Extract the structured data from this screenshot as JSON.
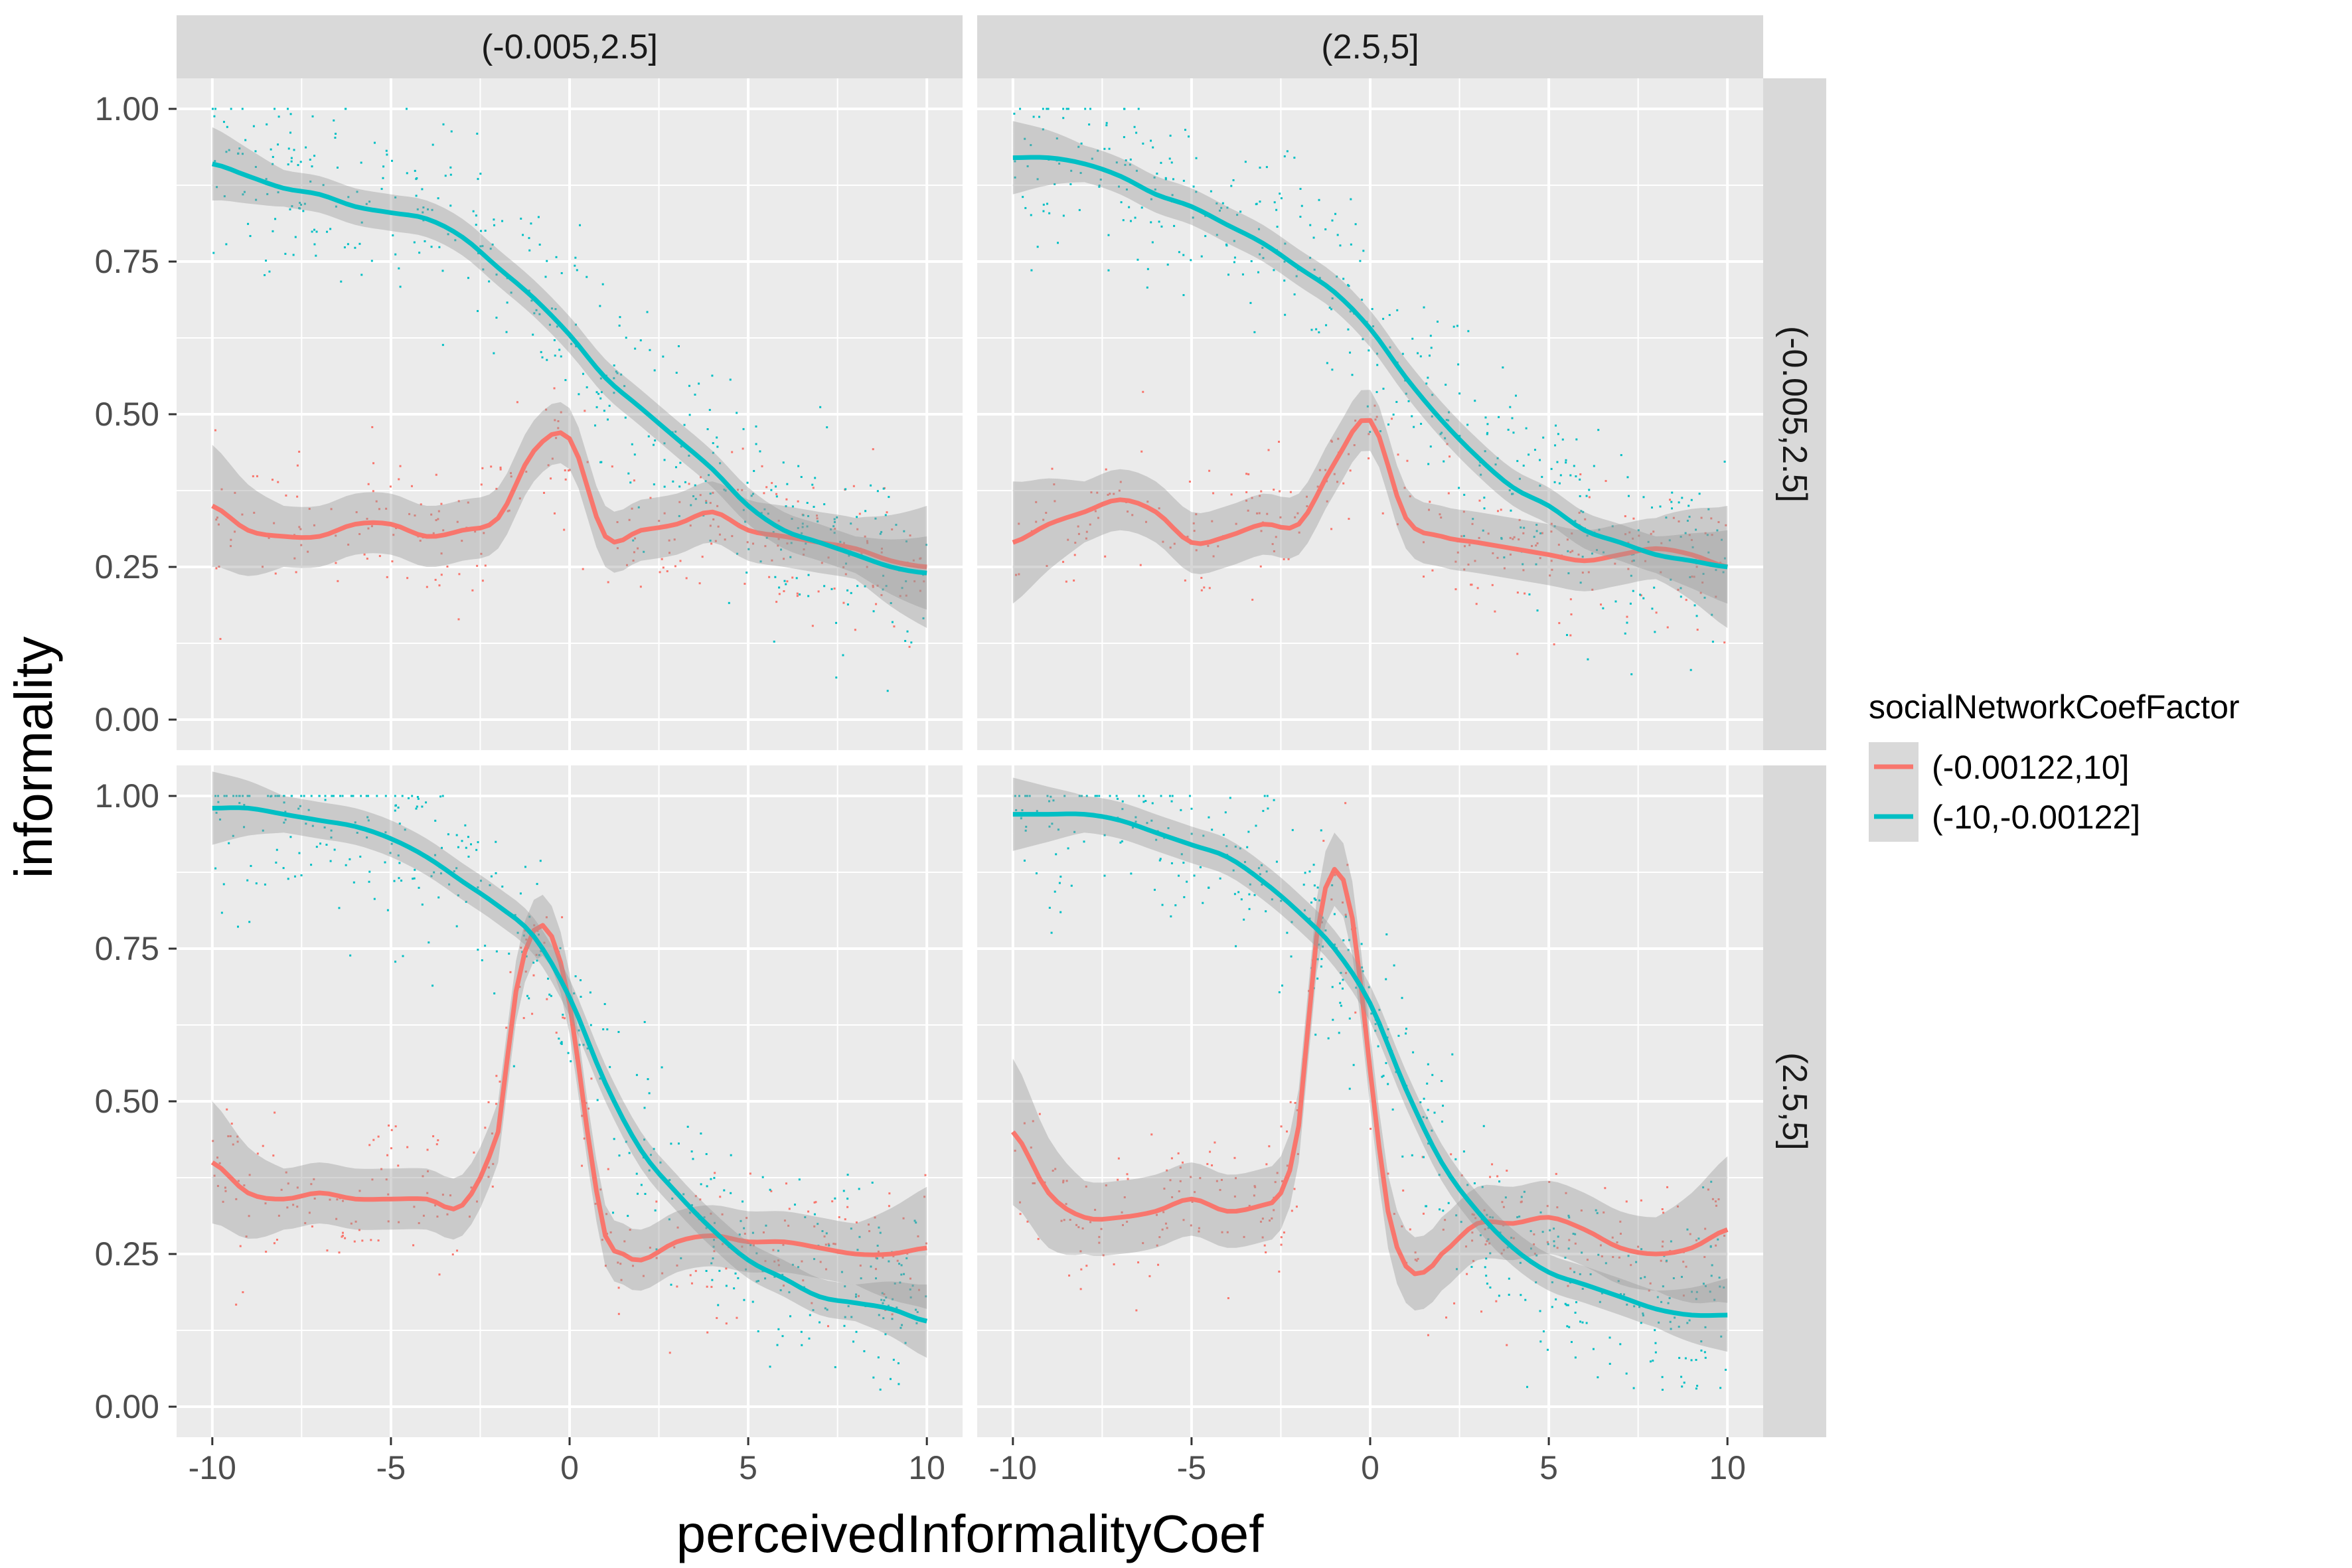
{
  "chart_data": {
    "type": "scatter",
    "xlabel": "perceivedInformalityCoef",
    "ylabel": "informality",
    "xlim": [
      -11,
      11
    ],
    "ylim": [
      -0.05,
      1.05
    ],
    "x_ticks": [
      -10,
      -5,
      0,
      5,
      10
    ],
    "x_tick_labels": [
      "-10",
      "-5",
      "0",
      "5",
      "10"
    ],
    "y_ticks": [
      0,
      0.25,
      0.5,
      0.75,
      1
    ],
    "y_tick_labels": [
      "0.00",
      "0.25",
      "0.50",
      "0.75",
      "1.00"
    ],
    "grid": true,
    "col_facets": [
      "(-0.005,2.5]",
      "(2.5,5]"
    ],
    "row_facets": [
      "(-0.005,2.5]",
      "(2.5,5]"
    ],
    "legend": {
      "title": "socialNetworkCoefFactor",
      "position": "right",
      "entries": [
        "(-0.00122,10]",
        "(-10,-0.00122]"
      ]
    },
    "colors": {
      "series_a": "#F8766D",
      "series_b": "#00BFC4",
      "panel_bg": "#EBEBEB",
      "strip_bg": "#D9D9D9",
      "ribbon": "#999999"
    },
    "panels": [
      {
        "row": 0,
        "col": 0,
        "series": [
          {
            "name": "(-0.00122,10]",
            "x": [
              -10,
              -9,
              -8,
              -7,
              -6,
              -5,
              -4,
              -3,
              -2,
              -1,
              0,
              1,
              2,
              3,
              4,
              5,
              6,
              7,
              8,
              9,
              10
            ],
            "y": [
              0.35,
              0.31,
              0.3,
              0.3,
              0.32,
              0.32,
              0.3,
              0.31,
              0.33,
              0.44,
              0.46,
              0.3,
              0.31,
              0.32,
              0.34,
              0.31,
              0.3,
              0.29,
              0.28,
              0.26,
              0.25
            ]
          },
          {
            "name": "(-10,-0.00122]",
            "x": [
              -10,
              -9,
              -8,
              -7,
              -6,
              -5,
              -4,
              -3,
              -2,
              -1,
              0,
              1,
              2,
              3,
              4,
              5,
              6,
              7,
              8,
              9,
              10
            ],
            "y": [
              0.91,
              0.89,
              0.87,
              0.86,
              0.84,
              0.83,
              0.82,
              0.79,
              0.74,
              0.69,
              0.63,
              0.56,
              0.51,
              0.46,
              0.41,
              0.35,
              0.31,
              0.29,
              0.27,
              0.25,
              0.24
            ]
          }
        ],
        "ribbon_halfwidth": [
          0.05,
          0.03
        ]
      },
      {
        "row": 0,
        "col": 1,
        "series": [
          {
            "name": "(-0.00122,10]",
            "x": [
              -10,
              -9,
              -8,
              -7,
              -6,
              -5,
              -4,
              -3,
              -2,
              -1,
              0,
              1,
              2,
              3,
              4,
              5,
              6,
              7,
              8,
              9,
              10
            ],
            "y": [
              0.29,
              0.32,
              0.34,
              0.36,
              0.34,
              0.29,
              0.3,
              0.32,
              0.32,
              0.42,
              0.49,
              0.33,
              0.3,
              0.29,
              0.28,
              0.27,
              0.26,
              0.27,
              0.28,
              0.27,
              0.25
            ]
          },
          {
            "name": "(-10,-0.00122]",
            "x": [
              -10,
              -9,
              -8,
              -7,
              -6,
              -5,
              -4,
              -3,
              -2,
              -1,
              0,
              1,
              2,
              3,
              4,
              5,
              6,
              7,
              8,
              9,
              10
            ],
            "y": [
              0.92,
              0.92,
              0.91,
              0.89,
              0.86,
              0.84,
              0.81,
              0.78,
              0.74,
              0.7,
              0.64,
              0.56,
              0.49,
              0.43,
              0.38,
              0.35,
              0.31,
              0.29,
              0.27,
              0.26,
              0.25
            ]
          }
        ],
        "ribbon_halfwidth": [
          0.05,
          0.03
        ]
      },
      {
        "row": 1,
        "col": 0,
        "series": [
          {
            "name": "(-0.00122,10]",
            "x": [
              -10,
              -9,
              -8,
              -7,
              -6,
              -5,
              -4,
              -3,
              -2,
              -1.5,
              -1,
              -0.5,
              0,
              0.5,
              1,
              1.5,
              2,
              3,
              4,
              5,
              6,
              7,
              8,
              9,
              10
            ],
            "y": [
              0.4,
              0.35,
              0.34,
              0.35,
              0.34,
              0.34,
              0.34,
              0.33,
              0.45,
              0.68,
              0.78,
              0.77,
              0.66,
              0.45,
              0.28,
              0.25,
              0.24,
              0.27,
              0.28,
              0.27,
              0.27,
              0.26,
              0.25,
              0.25,
              0.26
            ]
          },
          {
            "name": "(-10,-0.00122]",
            "x": [
              -10,
              -9,
              -8,
              -7,
              -6,
              -5,
              -4,
              -3,
              -2,
              -1,
              0,
              1,
              2,
              3,
              4,
              5,
              6,
              7,
              8,
              9,
              10
            ],
            "y": [
              0.98,
              0.98,
              0.97,
              0.96,
              0.95,
              0.93,
              0.9,
              0.86,
              0.82,
              0.77,
              0.67,
              0.53,
              0.42,
              0.35,
              0.29,
              0.24,
              0.21,
              0.18,
              0.17,
              0.16,
              0.14
            ]
          }
        ],
        "ribbon_halfwidth": [
          0.05,
          0.03
        ]
      },
      {
        "row": 1,
        "col": 1,
        "series": [
          {
            "name": "(-0.00122,10]",
            "x": [
              -10,
              -9,
              -8,
              -7,
              -6,
              -5,
              -4,
              -3,
              -2.5,
              -2,
              -1.5,
              -1,
              -0.5,
              0,
              0.5,
              1,
              1.5,
              2,
              3,
              4,
              5,
              6,
              7,
              8,
              9,
              10
            ],
            "y": [
              0.45,
              0.35,
              0.31,
              0.31,
              0.32,
              0.34,
              0.32,
              0.33,
              0.35,
              0.46,
              0.77,
              0.88,
              0.8,
              0.55,
              0.32,
              0.23,
              0.22,
              0.25,
              0.3,
              0.3,
              0.31,
              0.29,
              0.26,
              0.25,
              0.26,
              0.29
            ]
          },
          {
            "name": "(-10,-0.00122]",
            "x": [
              -10,
              -9,
              -8,
              -7,
              -6,
              -5,
              -4,
              -3,
              -2,
              -1,
              0,
              1,
              2,
              3,
              4,
              5,
              6,
              7,
              8,
              9,
              10
            ],
            "y": [
              0.97,
              0.97,
              0.97,
              0.96,
              0.94,
              0.92,
              0.9,
              0.86,
              0.81,
              0.75,
              0.66,
              0.52,
              0.4,
              0.32,
              0.26,
              0.22,
              0.2,
              0.18,
              0.16,
              0.15,
              0.15
            ]
          }
        ],
        "ribbon_halfwidth": [
          0.06,
          0.03
        ]
      }
    ]
  }
}
